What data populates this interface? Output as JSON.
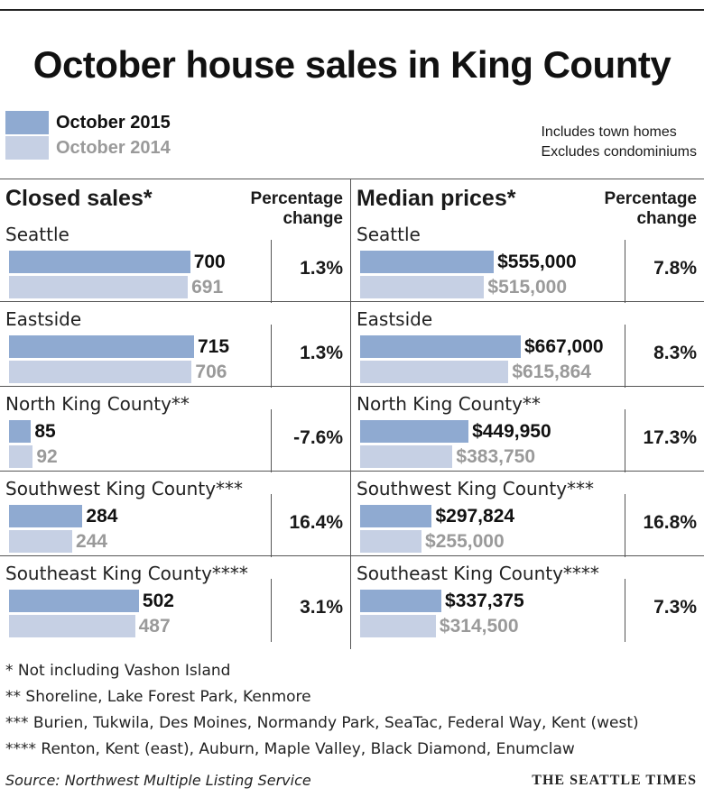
{
  "title": "October house sales in King County",
  "legend": [
    {
      "label": "October 2015",
      "color": "#8faad1",
      "text_color": "#111111"
    },
    {
      "label": "October 2014",
      "color": "#c6d0e4",
      "text_color": "#9a9a9a"
    }
  ],
  "notes": [
    "Includes town homes",
    "Excludes condominiums"
  ],
  "pct_header": [
    "Percentage",
    "change"
  ],
  "chart_data": [
    {
      "type": "bar",
      "title": "Closed sales*",
      "categories": [
        "Seattle",
        "Eastside",
        "North King County**",
        "Southwest King County***",
        "Southeast King County****"
      ],
      "series": [
        {
          "name": "October 2015",
          "values": [
            700,
            715,
            85,
            284,
            502
          ]
        },
        {
          "name": "October 2014",
          "values": [
            691,
            706,
            92,
            244,
            487
          ]
        }
      ],
      "labels_2015": [
        "700",
        "715",
        "85",
        "284",
        "502"
      ],
      "labels_2014": [
        "691",
        "706",
        "92",
        "244",
        "487"
      ],
      "pct_change": [
        "1.3%",
        "1.3%",
        "-7.6%",
        "16.4%",
        "3.1%"
      ],
      "vmax": 715
    },
    {
      "type": "bar",
      "title": "Median prices*",
      "categories": [
        "Seattle",
        "Eastside",
        "North King County**",
        "Southwest King County***",
        "Southeast King County****"
      ],
      "series": [
        {
          "name": "October 2015",
          "values": [
            555000,
            667000,
            449950,
            297824,
            337375
          ]
        },
        {
          "name": "October 2014",
          "values": [
            515000,
            615864,
            383750,
            255000,
            314500
          ]
        }
      ],
      "labels_2015": [
        "$555,000",
        "$667,000",
        "$449,950",
        "$297,824",
        "$337,375"
      ],
      "labels_2014": [
        "$515,000",
        "$615,864",
        "$383,750",
        "$255,000",
        "$314,500"
      ],
      "pct_change": [
        "7.8%",
        "8.3%",
        "17.3%",
        "16.8%",
        "7.3%"
      ],
      "vmax": 667000
    }
  ],
  "footnotes": [
    "* Not including Vashon Island",
    "**  Shoreline, Lake Forest Park, Kenmore",
    "*** Burien, Tukwila, Des Moines, Normandy Park, SeaTac, Federal Way, Kent (west)",
    "**** Renton, Kent (east), Auburn, Maple Valley, Black Diamond, Enumclaw"
  ],
  "source": "Source: Northwest Multiple Listing Service",
  "credit": "THE SEATTLE TIMES"
}
